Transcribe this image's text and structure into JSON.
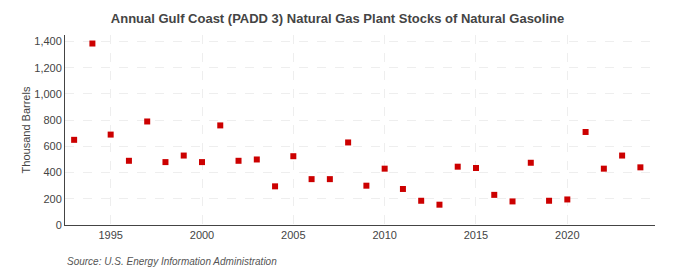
{
  "chart_data": {
    "type": "scatter",
    "title": "Annual Gulf Coast (PADD 3) Natural Gas Plant Stocks of Natural Gasoline",
    "ylabel": "Thousand Barrels",
    "source": "Source: U.S. Energy Information Administration",
    "x": [
      1993,
      1994,
      1995,
      1996,
      1997,
      1998,
      1999,
      2000,
      2001,
      2002,
      2003,
      2004,
      2005,
      2006,
      2007,
      2008,
      2009,
      2010,
      2011,
      2012,
      2013,
      2014,
      2015,
      2016,
      2017,
      2018,
      2019,
      2020,
      2021,
      2022,
      2023,
      2024
    ],
    "values": [
      650,
      1385,
      690,
      490,
      790,
      480,
      530,
      480,
      760,
      490,
      500,
      295,
      525,
      350,
      350,
      630,
      300,
      430,
      275,
      185,
      155,
      445,
      435,
      230,
      180,
      475,
      185,
      195,
      710,
      430,
      530,
      440
    ],
    "color": "#cc0000",
    "marker": "square",
    "xlim": [
      1992.5,
      2024.8
    ],
    "xticks": [
      1995,
      2000,
      2005,
      2010,
      2015,
      2020
    ],
    "ylim": [
      0,
      1450
    ],
    "yticks": [
      0,
      200,
      400,
      600,
      800,
      {
        "value": 1000,
        "label": "1,000"
      },
      {
        "value": 1200,
        "label": "1,200"
      },
      {
        "value": 1400,
        "label": "1,400"
      }
    ],
    "grid": true
  }
}
